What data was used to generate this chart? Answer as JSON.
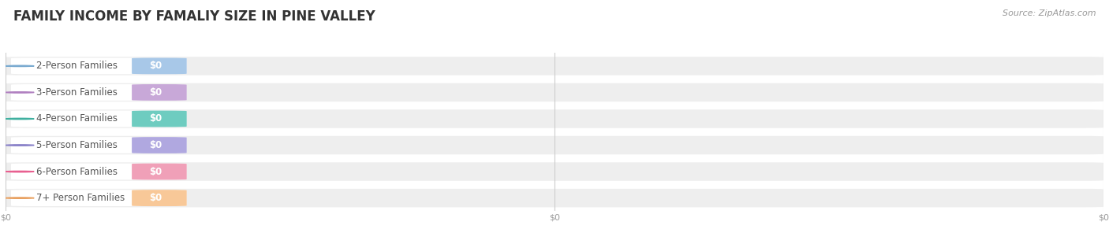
{
  "title": "FAMILY INCOME BY FAMALIY SIZE IN PINE VALLEY",
  "source": "Source: ZipAtlas.com",
  "categories": [
    "2-Person Families",
    "3-Person Families",
    "4-Person Families",
    "5-Person Families",
    "6-Person Families",
    "7+ Person Families"
  ],
  "values": [
    0,
    0,
    0,
    0,
    0,
    0
  ],
  "bar_colors": [
    "#a8c8e8",
    "#c8a8d8",
    "#6eccc0",
    "#b0a8e0",
    "#f0a0b8",
    "#f8c898"
  ],
  "dot_colors": [
    "#7aaad0",
    "#b080c0",
    "#40b0a0",
    "#8880c8",
    "#e86090",
    "#e8a060"
  ],
  "background_color": "#ffffff",
  "bar_bg_color": "#eeeeee",
  "row_alt_colors": [
    "#f7f7f7",
    "#ffffff"
  ],
  "title_fontsize": 12,
  "source_fontsize": 8,
  "label_fontsize": 8.5,
  "value_fontsize": 8.5,
  "tick_label_fontsize": 8,
  "tick_color": "#999999",
  "grid_color": "#cccccc",
  "label_text_color": "#555555",
  "title_color": "#333333",
  "source_color": "#999999"
}
